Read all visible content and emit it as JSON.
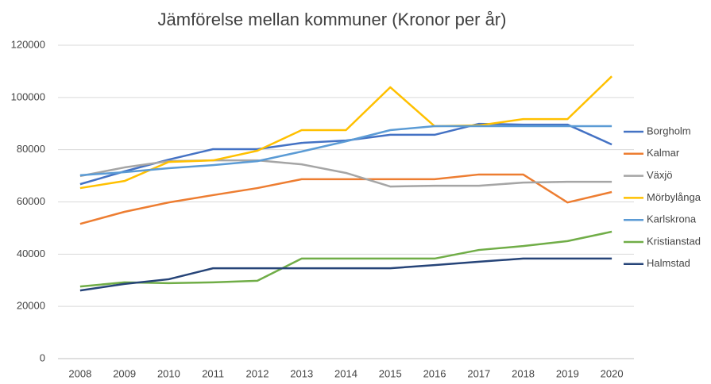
{
  "chart_data": {
    "type": "line",
    "title": "Jämförelse mellan kommuner (Kronor per år)",
    "categories": [
      "2008",
      "2009",
      "2010",
      "2011",
      "2012",
      "2013",
      "2014",
      "2015",
      "2016",
      "2017",
      "2018",
      "2019",
      "2020"
    ],
    "series": [
      {
        "name": "Borgholm",
        "color": "#4472c4",
        "values": [
          66800,
          71700,
          76200,
          80200,
          80200,
          82600,
          83500,
          85700,
          85700,
          89900,
          89600,
          89600,
          82000
        ]
      },
      {
        "name": "Kalmar",
        "color": "#ed7d31",
        "values": [
          51600,
          56200,
          59800,
          62600,
          65300,
          68700,
          68700,
          68700,
          68700,
          70500,
          70500,
          59800,
          63800
        ]
      },
      {
        "name": "Växjö",
        "color": "#a5a5a5",
        "values": [
          69900,
          73200,
          75600,
          75900,
          75900,
          74400,
          71100,
          65900,
          66200,
          66200,
          67400,
          67700,
          67700
        ]
      },
      {
        "name": "Mörbylånga",
        "color": "#ffc000",
        "values": [
          65300,
          68000,
          75300,
          75900,
          79600,
          87500,
          87500,
          103900,
          89000,
          89300,
          91700,
          91700,
          108100
        ]
      },
      {
        "name": "Karlskrona",
        "color": "#5b9bd5",
        "values": [
          70200,
          71400,
          72900,
          74100,
          75600,
          79300,
          83200,
          87500,
          89000,
          89000,
          89000,
          89000,
          89000
        ]
      },
      {
        "name": "Kristianstad",
        "color": "#70ad47",
        "values": [
          27600,
          29200,
          28900,
          29200,
          29800,
          38300,
          38300,
          38300,
          38300,
          41600,
          43100,
          45000,
          48600
        ]
      },
      {
        "name": "Halmstad",
        "color": "#264478",
        "values": [
          26100,
          28600,
          30400,
          34600,
          34600,
          34600,
          34600,
          34600,
          35800,
          37100,
          38300,
          38300,
          38300
        ]
      }
    ],
    "ylim": [
      0,
      120000
    ],
    "yticks": [
      0,
      20000,
      40000,
      60000,
      80000,
      100000,
      120000
    ],
    "grid": true,
    "legend": "right"
  }
}
